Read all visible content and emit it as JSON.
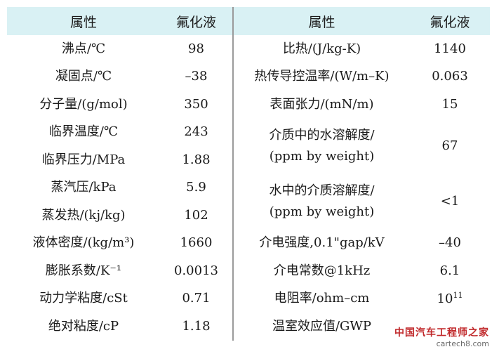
{
  "headers": {
    "property": "属性",
    "fluid": "氟化液"
  },
  "rows": [
    {
      "lp": "沸点/℃",
      "lv": "98",
      "rp": "比热/(J/kg-K)",
      "rv": "1140"
    },
    {
      "lp": "凝固点/℃",
      "lv": "–38",
      "rp": "热传导控温率/(W/m–K)",
      "rv": "0.063"
    },
    {
      "lp": "分子量/(g/mol)",
      "lv": "350",
      "rp": "表面张力/(mN/m)",
      "rv": "15"
    },
    {
      "lp": "临界温度/℃",
      "lv": "243"
    },
    {
      "lp": "临界压力/MPa",
      "lv": "1.88"
    },
    {
      "lp": "蒸汽压/kPa",
      "lv": "5.9"
    },
    {
      "lp": "蒸发热/(kj/kg)",
      "lv": "102"
    },
    {
      "lp": "液体密度/(kg/m³)",
      "lv": "1660",
      "rp": "介电强度,0.1\"gap/kV",
      "rv": "–40"
    },
    {
      "lp": "膨胀系数/K⁻¹",
      "lv": "0.0013",
      "rp": "介电常数@1kHz",
      "rv": "6.1"
    },
    {
      "lp": "动力学粘度/cSt",
      "lv": "0.71",
      "rp_base": "电阻率/ohm–cm",
      "rv_base": "10",
      "rv_exp": "11"
    },
    {
      "lp": "绝对粘度/cP",
      "lv": "1.18",
      "rp": "温室效应值/GWP",
      "rv": ""
    }
  ],
  "merged": {
    "solubility_in_water": {
      "line1": "介质中的水溶解度/",
      "line2": "(ppm by weight)",
      "value": "67"
    },
    "water_in_fluid": {
      "line1": "水中的介质溶解度/",
      "line2": "(ppm by weight)",
      "value": "<1"
    }
  },
  "watermark": {
    "main": "中国汽车工程师之家",
    "sub": "cartech8.com"
  }
}
